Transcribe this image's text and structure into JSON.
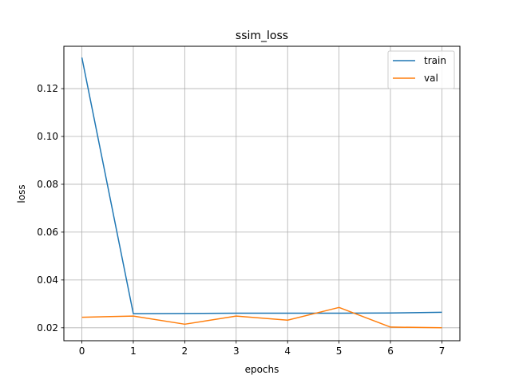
{
  "chart_data": {
    "type": "line",
    "title": "ssim_loss",
    "xlabel": "epochs",
    "ylabel": "loss",
    "x": [
      0,
      1,
      2,
      3,
      4,
      5,
      6,
      7
    ],
    "xlim": [
      -0.35,
      7.35
    ],
    "ylim": [
      0.0146,
      0.1377
    ],
    "xticks": [
      "0",
      "1",
      "2",
      "3",
      "4",
      "5",
      "6",
      "7"
    ],
    "yticks": [
      0.02,
      0.04,
      0.06,
      0.08,
      0.1,
      0.12
    ],
    "ytick_labels": [
      "0.02",
      "0.04",
      "0.06",
      "0.08",
      "0.10",
      "0.12"
    ],
    "grid": true,
    "legend_position": "top-right",
    "series": [
      {
        "name": "train",
        "color": "#1f77b4",
        "values": [
          0.133,
          0.0259,
          0.026,
          0.0261,
          0.0261,
          0.0261,
          0.0262,
          0.0265
        ]
      },
      {
        "name": "val",
        "color": "#ff7f0e",
        "values": [
          0.0244,
          0.0249,
          0.0215,
          0.0249,
          0.0232,
          0.0285,
          0.0203,
          0.02
        ]
      }
    ]
  }
}
